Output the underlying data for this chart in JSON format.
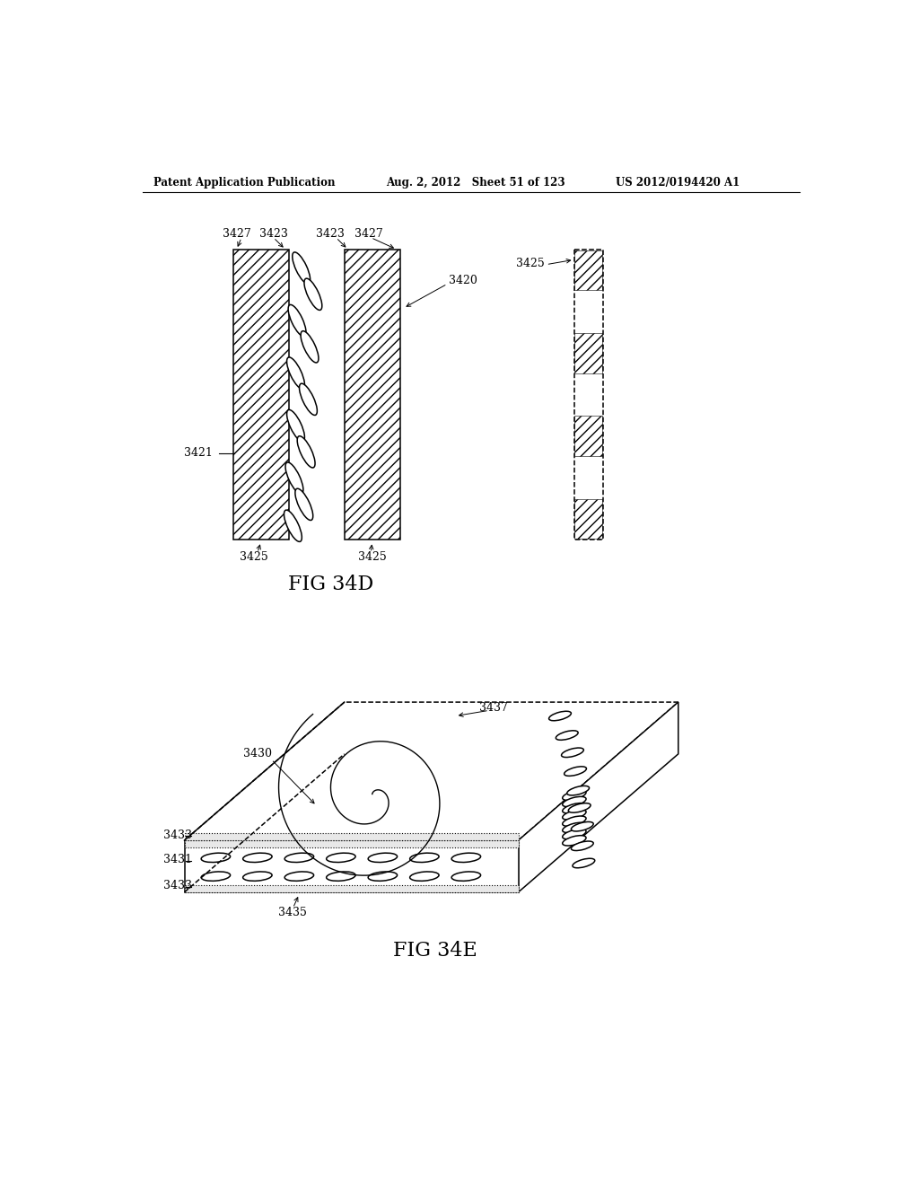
{
  "header_left": "Patent Application Publication",
  "header_mid": "Aug. 2, 2012   Sheet 51 of 123",
  "header_right": "US 2012/0194420 A1",
  "fig34d_label": "FIG 34D",
  "fig34e_label": "FIG 34E",
  "bg_color": "#ffffff",
  "line_color": "#000000"
}
